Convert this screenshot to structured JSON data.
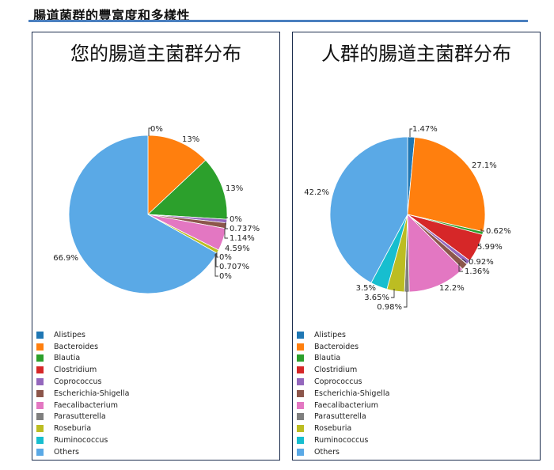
{
  "page": {
    "section_title": "腸道菌群的豐富度和多樣性"
  },
  "chart_data": [
    {
      "type": "pie",
      "title": "您的腸道主菌群分布",
      "categories": [
        "Alistipes",
        "Bacteroides",
        "Blautia",
        "Clostridium",
        "Coprococcus",
        "Escherichia-Shigella",
        "Faecalibacterium",
        "Parasutterella",
        "Roseburia",
        "Ruminococcus",
        "Others"
      ],
      "values": [
        0,
        13,
        13,
        0,
        0.737,
        1.14,
        4.59,
        0,
        0.707,
        0,
        66.9
      ],
      "value_labels": [
        "0%",
        "13%",
        "13%",
        "0%",
        "0.737%",
        "1.14%",
        "4.59%",
        "0%",
        "0.707%",
        "0%",
        "66.9%"
      ],
      "start_angle_deg": 0,
      "direction": "clockwise"
    },
    {
      "type": "pie",
      "title": "人群的腸道主菌群分布",
      "categories": [
        "Alistipes",
        "Bacteroides",
        "Blautia",
        "Clostridium",
        "Coprococcus",
        "Escherichia-Shigella",
        "Faecalibacterium",
        "Parasutterella",
        "Roseburia",
        "Ruminococcus",
        "Others"
      ],
      "values": [
        1.47,
        27.1,
        0.62,
        5.99,
        0.92,
        1.36,
        12.2,
        0.98,
        3.65,
        3.5,
        42.2
      ],
      "value_labels": [
        "1.47%",
        "27.1%",
        "0.62%",
        "5.99%",
        "0.92%",
        "1.36%",
        "12.2%",
        "0.98%",
        "3.65%",
        "3.5%",
        "42.2%"
      ],
      "start_angle_deg": 0,
      "direction": "clockwise"
    }
  ],
  "legend": {
    "placement": "bottom-left",
    "items": [
      {
        "label": "Alistipes",
        "color": "#1f77b4"
      },
      {
        "label": "Bacteroides",
        "color": "#ff7f0e"
      },
      {
        "label": "Blautia",
        "color": "#2ca02c"
      },
      {
        "label": "Clostridium",
        "color": "#d62728"
      },
      {
        "label": "Coprococcus",
        "color": "#9467bd"
      },
      {
        "label": "Escherichia-Shigella",
        "color": "#8c564b"
      },
      {
        "label": "Faecalibacterium",
        "color": "#e377c2"
      },
      {
        "label": "Parasutterella",
        "color": "#7f7f7f"
      },
      {
        "label": "Roseburia",
        "color": "#bcbd22"
      },
      {
        "label": "Ruminococcus",
        "color": "#17becf"
      },
      {
        "label": "Others",
        "color": "#5aa9e6"
      }
    ]
  }
}
